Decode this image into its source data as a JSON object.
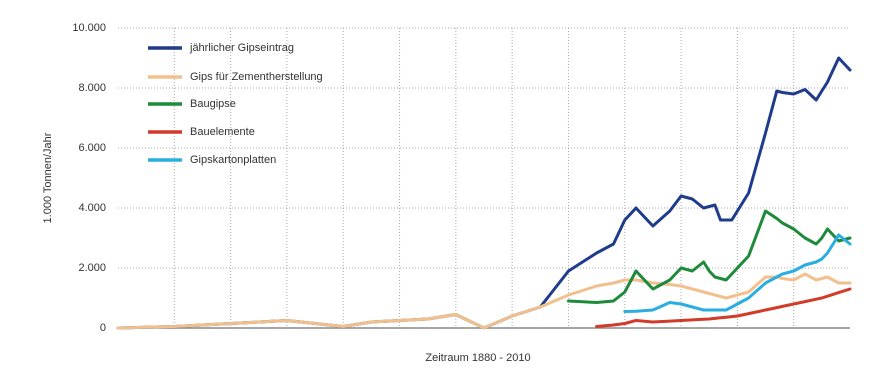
{
  "chart_data": {
    "type": "line",
    "y_label": "1.000 Tonnen/Jahr",
    "x_label": "Zeitraum 1880 - 2010",
    "x": [
      1880,
      1890,
      1900,
      1910,
      1920,
      1925,
      1935,
      1940,
      1945,
      1950,
      1955,
      1960,
      1965,
      1968,
      1970,
      1972,
      1975,
      1978,
      1980,
      1982,
      1984,
      1985,
      1986,
      1987,
      1988,
      1989,
      1990,
      1992,
      1995,
      1997,
      1998,
      2000,
      2002,
      2004,
      2005,
      2006,
      2008,
      2010
    ],
    "xlim": [
      1880,
      2010
    ],
    "xticks": [
      1890,
      1900,
      1910,
      1920,
      1930,
      1940,
      1950,
      1960,
      1970,
      1980,
      1990,
      2000
    ],
    "ylim": [
      0,
      10000
    ],
    "yticks": [
      0,
      {
        "value": 2000,
        "label": "2.000"
      },
      {
        "value": 4000,
        "label": "4.000"
      },
      {
        "value": 6000,
        "label": "6.000"
      },
      {
        "value": 8000,
        "label": "8.000"
      },
      {
        "value": 10000,
        "label": "10.000"
      }
    ],
    "grid": true,
    "legend": "upper left",
    "series": [
      {
        "name": "jährlicher Gipseintrag",
        "color": "#1f3b8c",
        "values": [
          0,
          50,
          150,
          250,
          50,
          200,
          300,
          450,
          0,
          400,
          700,
          1900,
          2500,
          2800,
          3600,
          4000,
          3400,
          3900,
          4400,
          4300,
          4000,
          4050,
          4100,
          3600,
          3600,
          3600,
          3900,
          4500,
          6500,
          7900,
          7850,
          7800,
          7950,
          7600,
          7900,
          8200,
          9000,
          8600
        ]
      },
      {
        "name": "Gips für Zementherstellung",
        "color": "#f2c08c",
        "values": [
          0,
          50,
          150,
          250,
          50,
          200,
          300,
          450,
          0,
          400,
          700,
          1100,
          1400,
          1500,
          1600,
          1600,
          1500,
          1450,
          1400,
          1300,
          1200,
          1150,
          1100,
          1050,
          1000,
          1050,
          1100,
          1200,
          1700,
          1700,
          1650,
          1600,
          1800,
          1600,
          1650,
          1700,
          1500,
          1500
        ]
      },
      {
        "name": "Baugipse",
        "color": "#1e8a3a",
        "values": [
          null,
          null,
          null,
          null,
          null,
          null,
          null,
          null,
          null,
          null,
          null,
          900,
          850,
          900,
          1200,
          1900,
          1300,
          1600,
          2000,
          1900,
          2200,
          1900,
          1700,
          1650,
          1600,
          1800,
          2000,
          2400,
          3900,
          3650,
          3500,
          3300,
          3000,
          2800,
          3000,
          3300,
          2900,
          3000
        ]
      },
      {
        "name": "Bauelemente",
        "color": "#d23a2a",
        "values": [
          null,
          null,
          null,
          null,
          null,
          null,
          null,
          null,
          null,
          null,
          null,
          null,
          50,
          100,
          150,
          250,
          200,
          230,
          250,
          270,
          290,
          300,
          320,
          340,
          360,
          380,
          400,
          480,
          600,
          680,
          720,
          800,
          880,
          960,
          1000,
          1060,
          1180,
          1300
        ]
      },
      {
        "name": "Gipskartonplatten",
        "color": "#2aaee0",
        "values": [
          null,
          null,
          null,
          null,
          null,
          null,
          null,
          null,
          null,
          null,
          null,
          null,
          null,
          null,
          550,
          560,
          600,
          850,
          800,
          700,
          600,
          600,
          600,
          600,
          600,
          700,
          800,
          1000,
          1500,
          1700,
          1800,
          1900,
          2100,
          2200,
          2300,
          2500,
          3100,
          2800
        ]
      }
    ]
  }
}
